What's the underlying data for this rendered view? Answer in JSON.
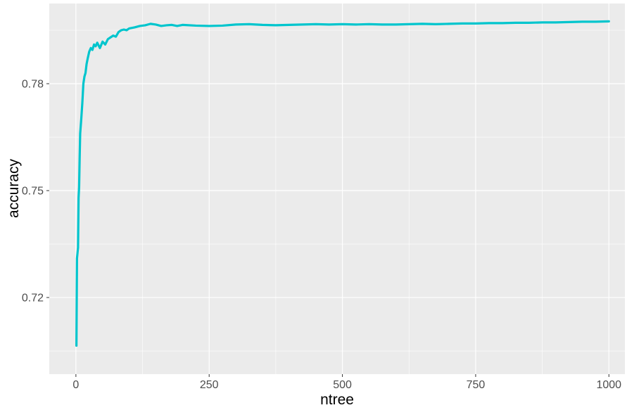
{
  "chart_data": {
    "type": "line",
    "title": "",
    "xlabel": "ntree",
    "ylabel": "accuracy",
    "xlim": [
      -50,
      1030
    ],
    "ylim": [
      0.6985,
      0.8025
    ],
    "x_ticks": [
      0,
      250,
      500,
      750,
      1000
    ],
    "x_tick_labels": [
      "0",
      "250",
      "500",
      "750",
      "1000"
    ],
    "y_ticks": [
      0.72,
      0.75,
      0.78
    ],
    "y_tick_labels": [
      "0.72",
      "0.75",
      "0.78"
    ],
    "grid": true,
    "legend": "none",
    "colors": {
      "panel": "#ebebeb",
      "grid": "#ffffff",
      "line": "#00c5cd"
    },
    "series": [
      {
        "x": [
          1,
          2,
          3,
          4,
          5,
          6,
          7,
          8,
          10,
          12,
          14,
          16,
          18,
          20,
          22,
          25,
          28,
          31,
          34,
          37,
          40,
          45,
          50,
          55,
          60,
          65,
          70,
          75,
          80,
          85,
          90,
          95,
          100,
          110,
          120,
          130,
          140,
          150,
          160,
          170,
          180,
          190,
          200,
          225,
          250,
          275,
          300,
          325,
          350,
          375,
          400,
          425,
          450,
          475,
          500,
          525,
          550,
          575,
          600,
          625,
          650,
          675,
          700,
          725,
          750,
          775,
          800,
          825,
          850,
          875,
          900,
          925,
          950,
          975,
          1000
        ],
        "y": [
          0.7065,
          0.731,
          0.7325,
          0.734,
          0.748,
          0.751,
          0.759,
          0.766,
          0.77,
          0.7745,
          0.78,
          0.782,
          0.783,
          0.7855,
          0.787,
          0.789,
          0.79,
          0.7895,
          0.791,
          0.7905,
          0.7915,
          0.79,
          0.7918,
          0.791,
          0.7925,
          0.793,
          0.7935,
          0.7932,
          0.7945,
          0.795,
          0.7952,
          0.795,
          0.7955,
          0.7958,
          0.7962,
          0.7964,
          0.7968,
          0.7966,
          0.7962,
          0.7964,
          0.7965,
          0.7962,
          0.7965,
          0.7963,
          0.7962,
          0.7963,
          0.7966,
          0.7967,
          0.7965,
          0.7964,
          0.7965,
          0.7966,
          0.7967,
          0.7966,
          0.7967,
          0.7966,
          0.7967,
          0.7966,
          0.7966,
          0.7967,
          0.7968,
          0.7967,
          0.7968,
          0.7969,
          0.7969,
          0.797,
          0.797,
          0.7971,
          0.7971,
          0.7972,
          0.7972,
          0.7973,
          0.7974,
          0.7974,
          0.7975
        ]
      }
    ]
  }
}
